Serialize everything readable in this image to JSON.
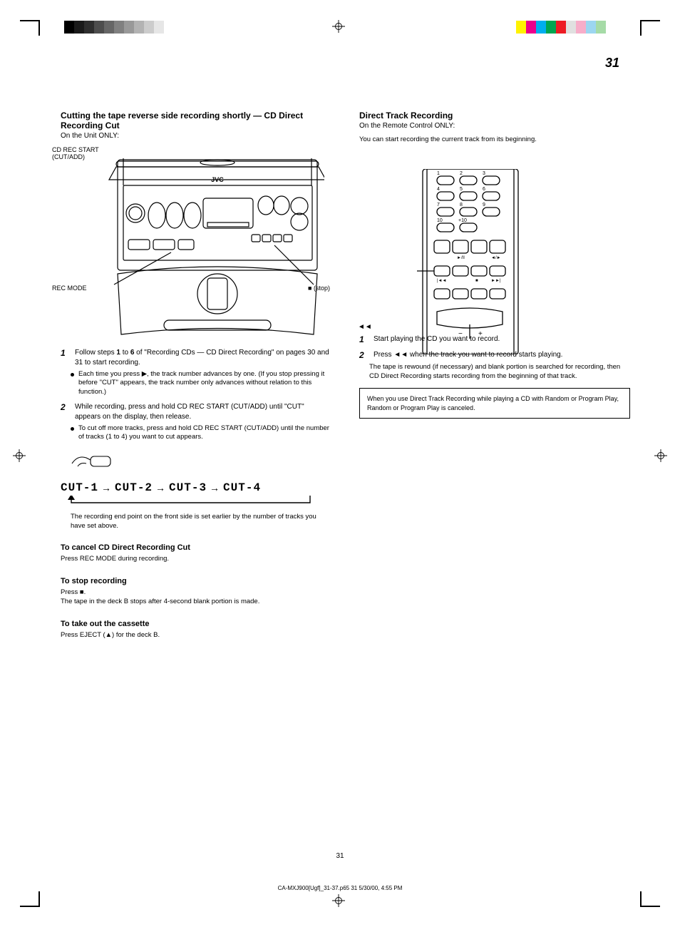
{
  "page_number": "31",
  "footer_text": "31",
  "print_footer": "CA-MXJ900[Ugf]_31-37.p65                31                                   5/30/00, 4:55 PM",
  "color_bars": {
    "left": [
      {
        "color": "#000000",
        "w": 14
      },
      {
        "color": "#1a1a1a",
        "w": 14
      },
      {
        "color": "#2e2e2e",
        "w": 14
      },
      {
        "color": "#4d4d4d",
        "w": 14
      },
      {
        "color": "#666666",
        "w": 14
      },
      {
        "color": "#808080",
        "w": 14
      },
      {
        "color": "#999999",
        "w": 14
      },
      {
        "color": "#b3b3b3",
        "w": 14
      },
      {
        "color": "#cccccc",
        "w": 14
      },
      {
        "color": "#e6e6e6",
        "w": 14
      }
    ],
    "right": [
      {
        "color": "#fff200",
        "w": 14
      },
      {
        "color": "#ec008c",
        "w": 14
      },
      {
        "color": "#00aeef",
        "w": 14
      },
      {
        "color": "#00a651",
        "w": 14
      },
      {
        "color": "#ed1c24",
        "w": 14
      },
      {
        "color": "#e0e0e0",
        "w": 14
      },
      {
        "color": "#f7adc9",
        "w": 14
      },
      {
        "color": "#9cd6f0",
        "w": 14
      },
      {
        "color": "#a6dba7",
        "w": 14
      },
      {
        "color": "#ffffff",
        "w": 14
      }
    ]
  },
  "crop_mark_color": "#000000",
  "left_col": {
    "title": "Cutting the tape reverse side recording shortly — CD Direct Recording Cut",
    "subtitle": "On the Unit ONLY:",
    "callouts": {
      "rec_button": "CD REC START (CUT/ADD)",
      "rec_mode_button": "REC MODE",
      "stop_button": "■ (stop)"
    },
    "steps": [
      {
        "num": "1",
        "text": "Follow steps <b>1</b> to <b>6</b> of \"Recording CDs — CD Direct Recording\" on pages 30 and 31 to start recording."
      },
      {
        "num": "2",
        "text": "While recording, press and hold CD REC START (CUT/ADD) until \"CUT\" appears on the display, then release."
      }
    ],
    "bullets": [
      "Each time you press ▶, the track number advances by one. (If you stop pressing it before \"CUT\" appears, the track number only advances without relation to this function.)",
      "To cut off more tracks, press and hold CD REC START (CUT/ADD) until the number of tracks (1 to 4) you want to cut appears."
    ],
    "cut_seq": [
      "CUT-1",
      "CUT-2",
      "CUT-3",
      "CUT-4"
    ],
    "after_seq": "The recording end point on the front side is set earlier by the number of tracks you have set above.",
    "cut_section_title": "To cancel CD Direct Recording Cut",
    "cut_section_body": "Press REC MODE during recording.",
    "stop_section_title": "To stop recording",
    "stop_section_body": "Press ■.\nThe tape in the deck B stops after 4-second blank portion is made.",
    "note_section_title": "To take out the cassette",
    "note_section_body": "Press EJECT (▲) for the deck B.",
    "icons": {
      "play": "►",
      "stop": "■",
      "eject": "▲"
    }
  },
  "right_col": {
    "title": "Direct Track Recording",
    "subtitle": "On the Remote Control ONLY:",
    "intro": "You can start recording the current track from its beginning.",
    "callout": "◄◄",
    "steps": [
      {
        "num": "1",
        "text": "Start playing the CD you want to record."
      },
      {
        "num": "2",
        "text": "Press ◄◄ when the track you want to record starts playing."
      }
    ],
    "after_step": "The tape is rewound (if necessary) and blank portion is searched for recording, then CD Direct Recording starts recording from the beginning of that track.",
    "note": "When you use Direct Track Recording while playing a CD with Random or Program Play, Random or Program Play is canceled.",
    "icons": {
      "rewind": "◄◄"
    }
  }
}
